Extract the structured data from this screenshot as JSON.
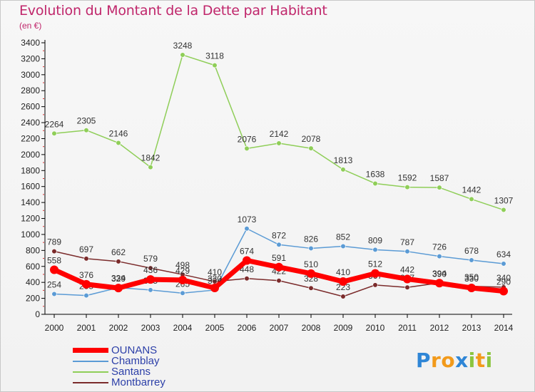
{
  "title": "Evolution du Montant de la Dette par Habitant",
  "subtitle": "(en €)",
  "logo": "Proxiti",
  "chart_data": {
    "type": "line",
    "x": [
      "2000",
      "2001",
      "2002",
      "2003",
      "2004",
      "2005",
      "2006",
      "2007",
      "2008",
      "2009",
      "2010",
      "2011",
      "2012",
      "2013",
      "2014"
    ],
    "ylim": [
      0,
      3400
    ],
    "yticks": [
      0,
      200,
      400,
      600,
      800,
      1000,
      1200,
      1400,
      1600,
      1800,
      2000,
      2200,
      2400,
      2600,
      2800,
      3000,
      3200,
      3400
    ],
    "grid": false,
    "legend_position": "bottom-left",
    "series": [
      {
        "name": "Santans",
        "color": "#8fce58",
        "values": [
          2264,
          2305,
          2146,
          1842,
          3248,
          3118,
          2076,
          2142,
          2078,
          1813,
          1638,
          1592,
          1587,
          1442,
          1307
        ],
        "labels": [
          "2264",
          "2305",
          "2146",
          "1842",
          "3248",
          "3118",
          "2076",
          "2142",
          "2078",
          "1813",
          "1638",
          "1592",
          "1587",
          "1442",
          "1307"
        ]
      },
      {
        "name": "Chamblay",
        "color": "#5b9bd5",
        "values": [
          254,
          235,
          334,
          305,
          265,
          304,
          1073,
          872,
          826,
          852,
          809,
          787,
          726,
          678,
          634
        ],
        "labels": [
          "254",
          "235",
          "334",
          "305",
          "265",
          "304",
          "1073",
          "872",
          "826",
          "852",
          "809",
          "787",
          "726",
          "678",
          "634"
        ]
      },
      {
        "name": "Montbarrey",
        "color": "#7b2b2b",
        "values": [
          789,
          697,
          662,
          579,
          498,
          410,
          448,
          422,
          328,
          223,
          367,
          337,
          394,
          350,
          340
        ],
        "labels": [
          "789",
          "697",
          "662",
          "579",
          "498",
          "410",
          "448",
          "422",
          "328",
          "223",
          "367",
          "337",
          "394",
          "350",
          "340"
        ]
      },
      {
        "name": "OUNANS",
        "color": "#ff0000",
        "values": [
          558,
          376,
          329,
          436,
          429,
          330,
          674,
          591,
          510,
          410,
          512,
          442,
          390,
          330,
          290
        ],
        "labels": [
          "558",
          "376",
          "329",
          "436",
          "429",
          "330",
          "674",
          "591",
          "510",
          "410",
          "512",
          "442",
          "390",
          "330",
          "290"
        ]
      }
    ]
  },
  "legend": [
    {
      "name": "OUNANS",
      "color": "#ff0000",
      "width": 7
    },
    {
      "name": "Chamblay",
      "color": "#5b9bd5",
      "width": 2
    },
    {
      "name": "Santans",
      "color": "#8fce58",
      "width": 2
    },
    {
      "name": "Montbarrey",
      "color": "#7b2b2b",
      "width": 2
    }
  ]
}
